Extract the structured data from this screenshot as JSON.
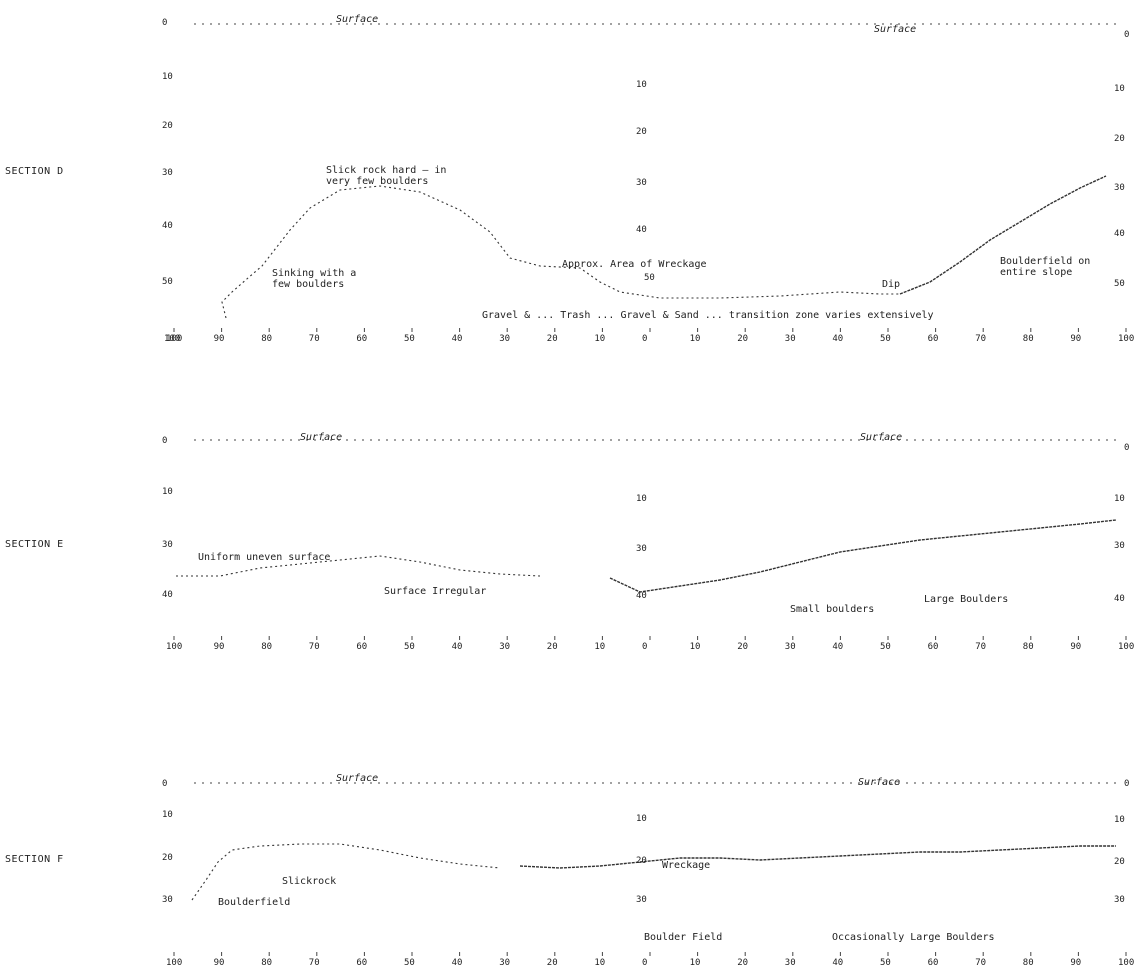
{
  "sections": [
    {
      "label": "SECTION D",
      "surface_left": "Surface",
      "surface_right": "Surface",
      "depth_left": [
        "0",
        "10",
        "20",
        "30",
        "40",
        "50",
        "100"
      ],
      "depth_center": [
        "10",
        "20",
        "30",
        "40",
        "50"
      ],
      "depth_right": [
        "0",
        "10",
        "20",
        "30",
        "40",
        "50"
      ],
      "distance": [
        "100",
        "90",
        "80",
        "70",
        "60",
        "50",
        "40",
        "30",
        "20",
        "10",
        "0",
        "10",
        "20",
        "30",
        "40",
        "50",
        "60",
        "70",
        "80",
        "90",
        "100"
      ],
      "annotations": [
        "Slick rock hard – in",
        "very few boulders",
        "Sinking with a",
        "few boulders",
        "Approx. Area of Wreckage",
        "Dip",
        "Boulderfield on",
        "entire slope",
        "Gravel & ... Trash ... Gravel & Sand ... transition zone varies extensively"
      ]
    },
    {
      "label": "SECTION E",
      "surface_left": "Surface",
      "surface_right": "Surface",
      "depth_left": [
        "0",
        "10",
        "30",
        "40"
      ],
      "depth_center": [
        "10",
        "30",
        "40"
      ],
      "depth_right": [
        "0",
        "10",
        "30",
        "40"
      ],
      "distance": [
        "100",
        "90",
        "80",
        "70",
        "60",
        "50",
        "40",
        "30",
        "20",
        "10",
        "0",
        "10",
        "20",
        "30",
        "40",
        "50",
        "60",
        "70",
        "80",
        "90",
        "100"
      ],
      "annotations": [
        "Uniform uneven surface",
        "Surface Irregular",
        "Small boulders",
        "Large Boulders"
      ]
    },
    {
      "label": "SECTION F",
      "surface_left": "Surface",
      "surface_right": "Surface",
      "depth_left": [
        "0",
        "10",
        "20",
        "30"
      ],
      "depth_center": [
        "10",
        "20",
        "30"
      ],
      "depth_right": [
        "0",
        "10",
        "20",
        "30"
      ],
      "distance": [
        "100",
        "90",
        "80",
        "70",
        "60",
        "50",
        "40",
        "30",
        "20",
        "10",
        "0",
        "10",
        "20",
        "30",
        "40",
        "50",
        "60",
        "70",
        "80",
        "90",
        "100"
      ],
      "annotations": [
        "Slickrock",
        "Boulderfield",
        "Wreckage",
        "Boulder Field",
        "Occasionally Large Boulders"
      ]
    }
  ],
  "colors": {
    "ink": "#222222",
    "background": "#ffffff"
  }
}
